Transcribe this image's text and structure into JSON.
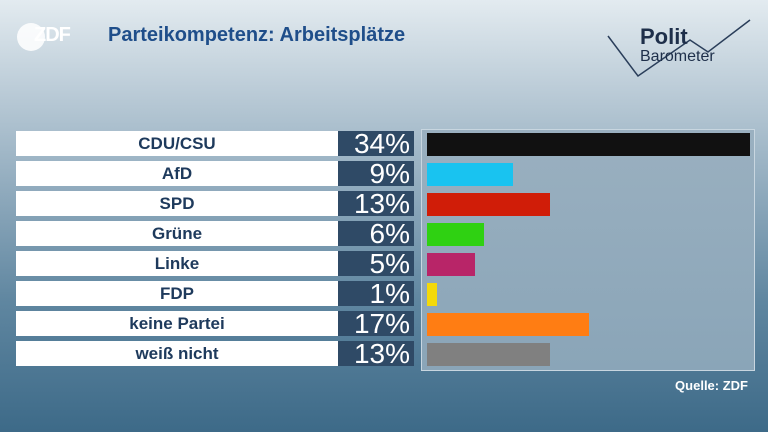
{
  "header": {
    "logo_text": "ZDF",
    "title": "Parteikompetenz: Arbeitsplätze",
    "brand_top": "Polit",
    "brand_bottom": "Barometer"
  },
  "chart_data": {
    "type": "bar",
    "title": "Parteikompetenz: Arbeitsplätze",
    "categories": [
      "CDU/CSU",
      "AfD",
      "SPD",
      "Grüne",
      "Linke",
      "FDP",
      "keine Partei",
      "weiß nicht"
    ],
    "values": [
      34,
      9,
      13,
      6,
      5,
      1,
      17,
      13
    ],
    "labels": [
      "34%",
      "9%",
      "13%",
      "6%",
      "5%",
      "1%",
      "17%",
      "13%"
    ],
    "colors": [
      "#111111",
      "#19c3f0",
      "#d01d08",
      "#2fd112",
      "#b82568",
      "#f3d90a",
      "#ff7d13",
      "#808080"
    ],
    "xlim": [
      0,
      34
    ],
    "grid": false,
    "orientation": "horizontal"
  },
  "footer": {
    "source": "Quelle: ZDF"
  }
}
